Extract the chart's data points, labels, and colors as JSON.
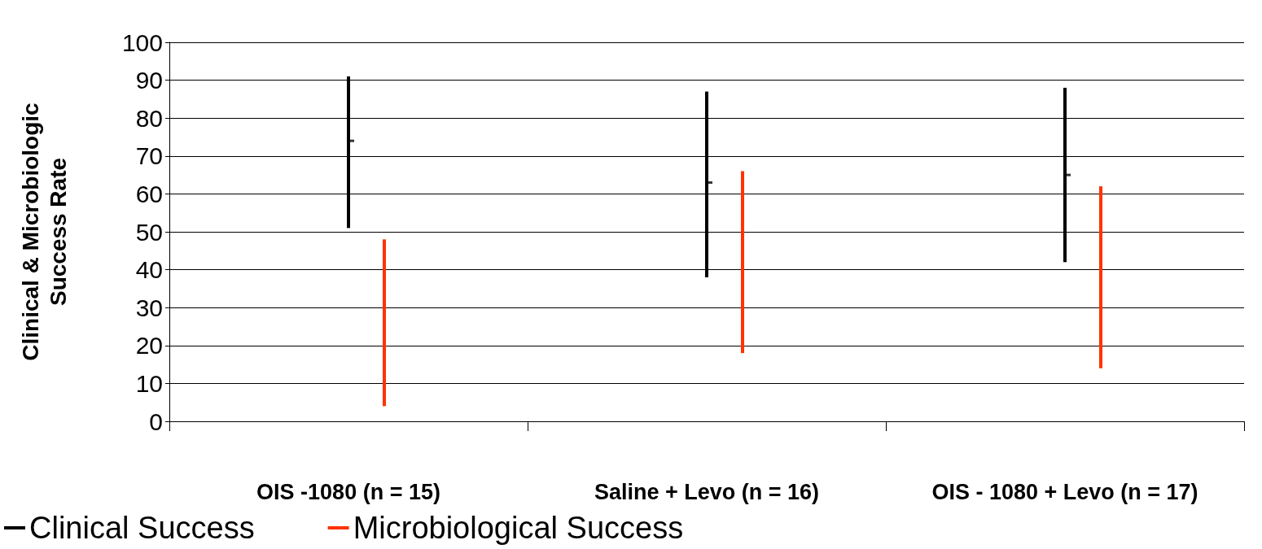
{
  "chart_data": {
    "type": "bar",
    "ylabel": "Clinical & Microbiologic Success Rate",
    "categories": [
      "OIS -1080 (n = 15)",
      "Saline + Levo (n = 16)",
      "OIS - 1080 + Levo (n = 17)"
    ],
    "series": [
      {
        "name": "Clinical Success",
        "color": "#000000",
        "base": [
          51,
          38,
          42
        ],
        "values": [
          40,
          49,
          46
        ]
      },
      {
        "name": "Microbiological Success",
        "color": "#ff3300",
        "base": [
          4,
          18,
          14
        ],
        "values": [
          44,
          48,
          48
        ]
      },
      {
        "type": "scatter",
        "color": "#000000",
        "marker": "square",
        "x": [
          "OIS -1080 (n = 15)",
          "Saline + Levo (n = 16)",
          "OIS - 1080 + Levo (n = 17)"
        ],
        "values": [
          74,
          63,
          65
        ]
      }
    ],
    "ylim": [
      0,
      100
    ],
    "yticks": [
      0,
      10,
      20,
      30,
      40,
      50,
      60,
      70,
      80,
      90,
      100
    ],
    "grid": "y",
    "legend": "bottom left"
  }
}
